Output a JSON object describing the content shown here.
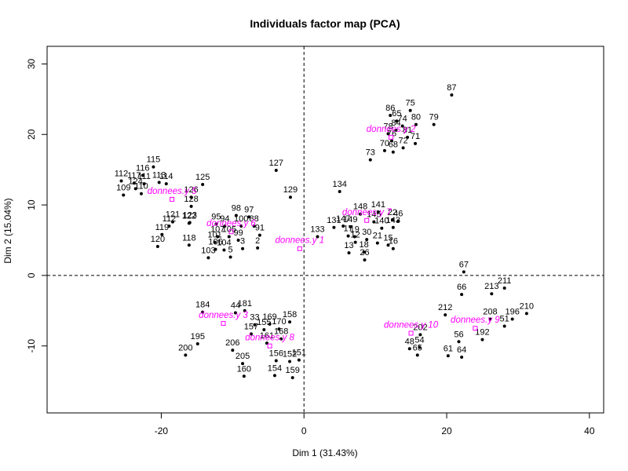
{
  "chart_data": {
    "type": "scatter",
    "title": "Individuals factor map (PCA)",
    "xlabel": "Dim 1 (31.43%)",
    "ylabel": "Dim 2 (15.04%)",
    "xlim": [
      -36,
      42
    ],
    "ylim": [
      -19.5,
      32.5
    ],
    "x_ticks": [
      -20,
      0,
      20,
      40
    ],
    "y_ticks": [
      -10,
      0,
      10,
      20,
      30
    ],
    "reference_lines": {
      "x": 0,
      "y": 0
    },
    "grid": false,
    "points_color": "#000000",
    "supplementary_color": "#ff00ff",
    "points": [
      {
        "label": "87",
        "x": 20.7,
        "y": 25.6
      },
      {
        "label": "75",
        "x": 14.9,
        "y": 23.4
      },
      {
        "label": "86",
        "x": 12.1,
        "y": 22.7
      },
      {
        "label": "65",
        "x": 13.0,
        "y": 21.9
      },
      {
        "label": "74",
        "x": 13.8,
        "y": 21.2
      },
      {
        "label": "80",
        "x": 15.7,
        "y": 21.4
      },
      {
        "label": "79",
        "x": 18.2,
        "y": 21.4
      },
      {
        "label": "84",
        "x": 12.9,
        "y": 20.6
      },
      {
        "label": "78",
        "x": 11.8,
        "y": 20.1
      },
      {
        "label": "81",
        "x": 14.5,
        "y": 19.6
      },
      {
        "label": "76",
        "x": 12.3,
        "y": 19.1
      },
      {
        "label": "71",
        "x": 15.6,
        "y": 18.7
      },
      {
        "label": "72",
        "x": 13.9,
        "y": 18.1
      },
      {
        "label": "70",
        "x": 11.3,
        "y": 17.7
      },
      {
        "label": "68",
        "x": 12.5,
        "y": 17.5
      },
      {
        "label": "73",
        "x": 9.3,
        "y": 16.4
      },
      {
        "label": "127",
        "x": -3.9,
        "y": 14.9
      },
      {
        "label": "129",
        "x": -1.9,
        "y": 11.1
      },
      {
        "label": "134",
        "x": 5.0,
        "y": 11.9
      },
      {
        "label": "148",
        "x": 7.9,
        "y": 8.7
      },
      {
        "label": "141",
        "x": 10.4,
        "y": 9.0
      },
      {
        "label": "145",
        "x": 9.8,
        "y": 7.6
      },
      {
        "label": "22",
        "x": 12.4,
        "y": 7.9
      },
      {
        "label": "46",
        "x": 13.2,
        "y": 7.7
      },
      {
        "label": "133",
        "x": 1.9,
        "y": 5.5
      },
      {
        "label": "131",
        "x": 4.2,
        "y": 6.8
      },
      {
        "label": "147",
        "x": 5.5,
        "y": 7.0
      },
      {
        "label": "149",
        "x": 6.5,
        "y": 6.9
      },
      {
        "label": "143",
        "x": 12.5,
        "y": 6.8
      },
      {
        "label": "140",
        "x": 10.9,
        "y": 6.7
      },
      {
        "label": "17",
        "x": 6.2,
        "y": 5.6
      },
      {
        "label": "19",
        "x": 7.1,
        "y": 5.5
      },
      {
        "label": "30",
        "x": 8.8,
        "y": 5.1
      },
      {
        "label": "21",
        "x": 10.3,
        "y": 4.6
      },
      {
        "label": "15",
        "x": 11.8,
        "y": 4.3
      },
      {
        "label": "16",
        "x": 12.5,
        "y": 3.8
      },
      {
        "label": "12",
        "x": 7.2,
        "y": 4.7
      },
      {
        "label": "13",
        "x": 6.3,
        "y": 3.2
      },
      {
        "label": "18",
        "x": 8.4,
        "y": 3.3
      },
      {
        "label": "26",
        "x": 8.5,
        "y": 2.2
      },
      {
        "label": "115",
        "x": -21.1,
        "y": 15.4
      },
      {
        "label": "116",
        "x": -22.6,
        "y": 14.2
      },
      {
        "label": "112",
        "x": -25.6,
        "y": 13.4
      },
      {
        "label": "117",
        "x": -23.8,
        "y": 13.1
      },
      {
        "label": "111",
        "x": -22.4,
        "y": 13.0
      },
      {
        "label": "113",
        "x": -20.3,
        "y": 13.2
      },
      {
        "label": "114",
        "x": -19.3,
        "y": 13.0
      },
      {
        "label": "125",
        "x": -14.2,
        "y": 12.9
      },
      {
        "label": "110",
        "x": -22.8,
        "y": 11.6
      },
      {
        "label": "109",
        "x": -25.3,
        "y": 11.4
      },
      {
        "label": "124",
        "x": -23.6,
        "y": 12.3
      },
      {
        "label": "126",
        "x": -15.8,
        "y": 11.1
      },
      {
        "label": "128",
        "x": -15.8,
        "y": 9.8
      },
      {
        "label": "121",
        "x": -18.4,
        "y": 7.6
      },
      {
        "label": "112b",
        "x": -18.9,
        "y": 7.0
      },
      {
        "label": "123",
        "x": -16.0,
        "y": 7.5
      },
      {
        "label": "122",
        "x": -16.1,
        "y": 7.4
      },
      {
        "label": "119",
        "x": -19.9,
        "y": 5.8
      },
      {
        "label": "120",
        "x": -20.5,
        "y": 4.1
      },
      {
        "label": "118",
        "x": -16.1,
        "y": 4.3
      },
      {
        "label": "98",
        "x": -9.5,
        "y": 8.5
      },
      {
        "label": "97",
        "x": -7.7,
        "y": 8.3
      },
      {
        "label": "95",
        "x": -12.3,
        "y": 7.3
      },
      {
        "label": "94",
        "x": -11.1,
        "y": 7.0
      },
      {
        "label": "100",
        "x": -8.8,
        "y": 7.0
      },
      {
        "label": "88",
        "x": -7.0,
        "y": 7.0
      },
      {
        "label": "107",
        "x": -12.1,
        "y": 5.5
      },
      {
        "label": "91",
        "x": -6.2,
        "y": 5.7
      },
      {
        "label": "105",
        "x": -10.5,
        "y": 5.5
      },
      {
        "label": "101",
        "x": -12.5,
        "y": 4.7
      },
      {
        "label": "99",
        "x": -9.2,
        "y": 5.0
      },
      {
        "label": "103",
        "x": -13.4,
        "y": 2.5
      },
      {
        "label": "106",
        "x": -12.4,
        "y": 3.7
      },
      {
        "label": "104",
        "x": -11.2,
        "y": 3.6
      },
      {
        "label": "5",
        "x": -10.3,
        "y": 2.6
      },
      {
        "label": "3",
        "x": -8.6,
        "y": 3.8
      },
      {
        "label": "2",
        "x": -6.5,
        "y": 3.9
      },
      {
        "label": "67",
        "x": 22.4,
        "y": 0.5
      },
      {
        "label": "211",
        "x": 28.1,
        "y": -1.8
      },
      {
        "label": "213",
        "x": 26.3,
        "y": -2.6
      },
      {
        "label": "66",
        "x": 22.1,
        "y": -2.7
      },
      {
        "label": "210",
        "x": 31.2,
        "y": -5.4
      },
      {
        "label": "196",
        "x": 29.2,
        "y": -6.2
      },
      {
        "label": "212",
        "x": 19.8,
        "y": -5.6
      },
      {
        "label": "208",
        "x": 26.1,
        "y": -6.2
      },
      {
        "label": "51",
        "x": 28.1,
        "y": -7.2
      },
      {
        "label": "202",
        "x": 16.3,
        "y": -8.4
      },
      {
        "label": "192",
        "x": 25.0,
        "y": -9.1
      },
      {
        "label": "56",
        "x": 21.7,
        "y": -9.4
      },
      {
        "label": "48",
        "x": 14.8,
        "y": -10.4
      },
      {
        "label": "54",
        "x": 16.2,
        "y": -10.2
      },
      {
        "label": "61",
        "x": 20.2,
        "y": -11.4
      },
      {
        "label": "65b",
        "x": 15.9,
        "y": -11.3
      },
      {
        "label": "64",
        "x": 22.1,
        "y": -11.6
      },
      {
        "label": "184",
        "x": -14.2,
        "y": -5.2
      },
      {
        "label": "44",
        "x": -9.6,
        "y": -5.3
      },
      {
        "label": "181",
        "x": -8.3,
        "y": -5.0
      },
      {
        "label": "158",
        "x": -2.0,
        "y": -6.6
      },
      {
        "label": "33",
        "x": -6.9,
        "y": -7.0
      },
      {
        "label": "169",
        "x": -4.8,
        "y": -6.9
      },
      {
        "label": "170",
        "x": -3.5,
        "y": -7.6
      },
      {
        "label": "155",
        "x": -5.6,
        "y": -7.7
      },
      {
        "label": "157",
        "x": -7.4,
        "y": -8.3
      },
      {
        "label": "168",
        "x": -3.2,
        "y": -9.0
      },
      {
        "label": "195",
        "x": -14.9,
        "y": -9.7
      },
      {
        "label": "200",
        "x": -16.6,
        "y": -11.3
      },
      {
        "label": "206",
        "x": -10.0,
        "y": -10.6
      },
      {
        "label": "161",
        "x": -5.2,
        "y": -9.6
      },
      {
        "label": "151",
        "x": -0.7,
        "y": -12.0
      },
      {
        "label": "152",
        "x": -2.0,
        "y": -12.2
      },
      {
        "label": "156",
        "x": -3.9,
        "y": -12.1
      },
      {
        "label": "154",
        "x": -4.1,
        "y": -14.2
      },
      {
        "label": "159",
        "x": -1.6,
        "y": -14.5
      },
      {
        "label": "205",
        "x": -8.6,
        "y": -12.5
      },
      {
        "label": "160",
        "x": -8.4,
        "y": -14.3
      }
    ],
    "supplementary": [
      {
        "label": "donnees.y 1",
        "x": -0.6,
        "y": 3.8
      },
      {
        "label": "donnees.y 2",
        "x": 12.2,
        "y": 19.6
      },
      {
        "label": "donnees.y 5",
        "x": -18.5,
        "y": 10.8
      },
      {
        "label": "donnees.y 6",
        "x": -10.2,
        "y": 6.2
      },
      {
        "label": "donnees.y 7",
        "x": 8.8,
        "y": 7.8
      },
      {
        "label": "donnees.y 3",
        "x": -11.3,
        "y": -6.8
      },
      {
        "label": "donnees.y 8",
        "x": -4.8,
        "y": -10.0
      },
      {
        "label": "donnees.y 10",
        "x": 15.0,
        "y": -8.2
      },
      {
        "label": "donnees.y 9",
        "x": 24.0,
        "y": -7.5
      }
    ]
  }
}
